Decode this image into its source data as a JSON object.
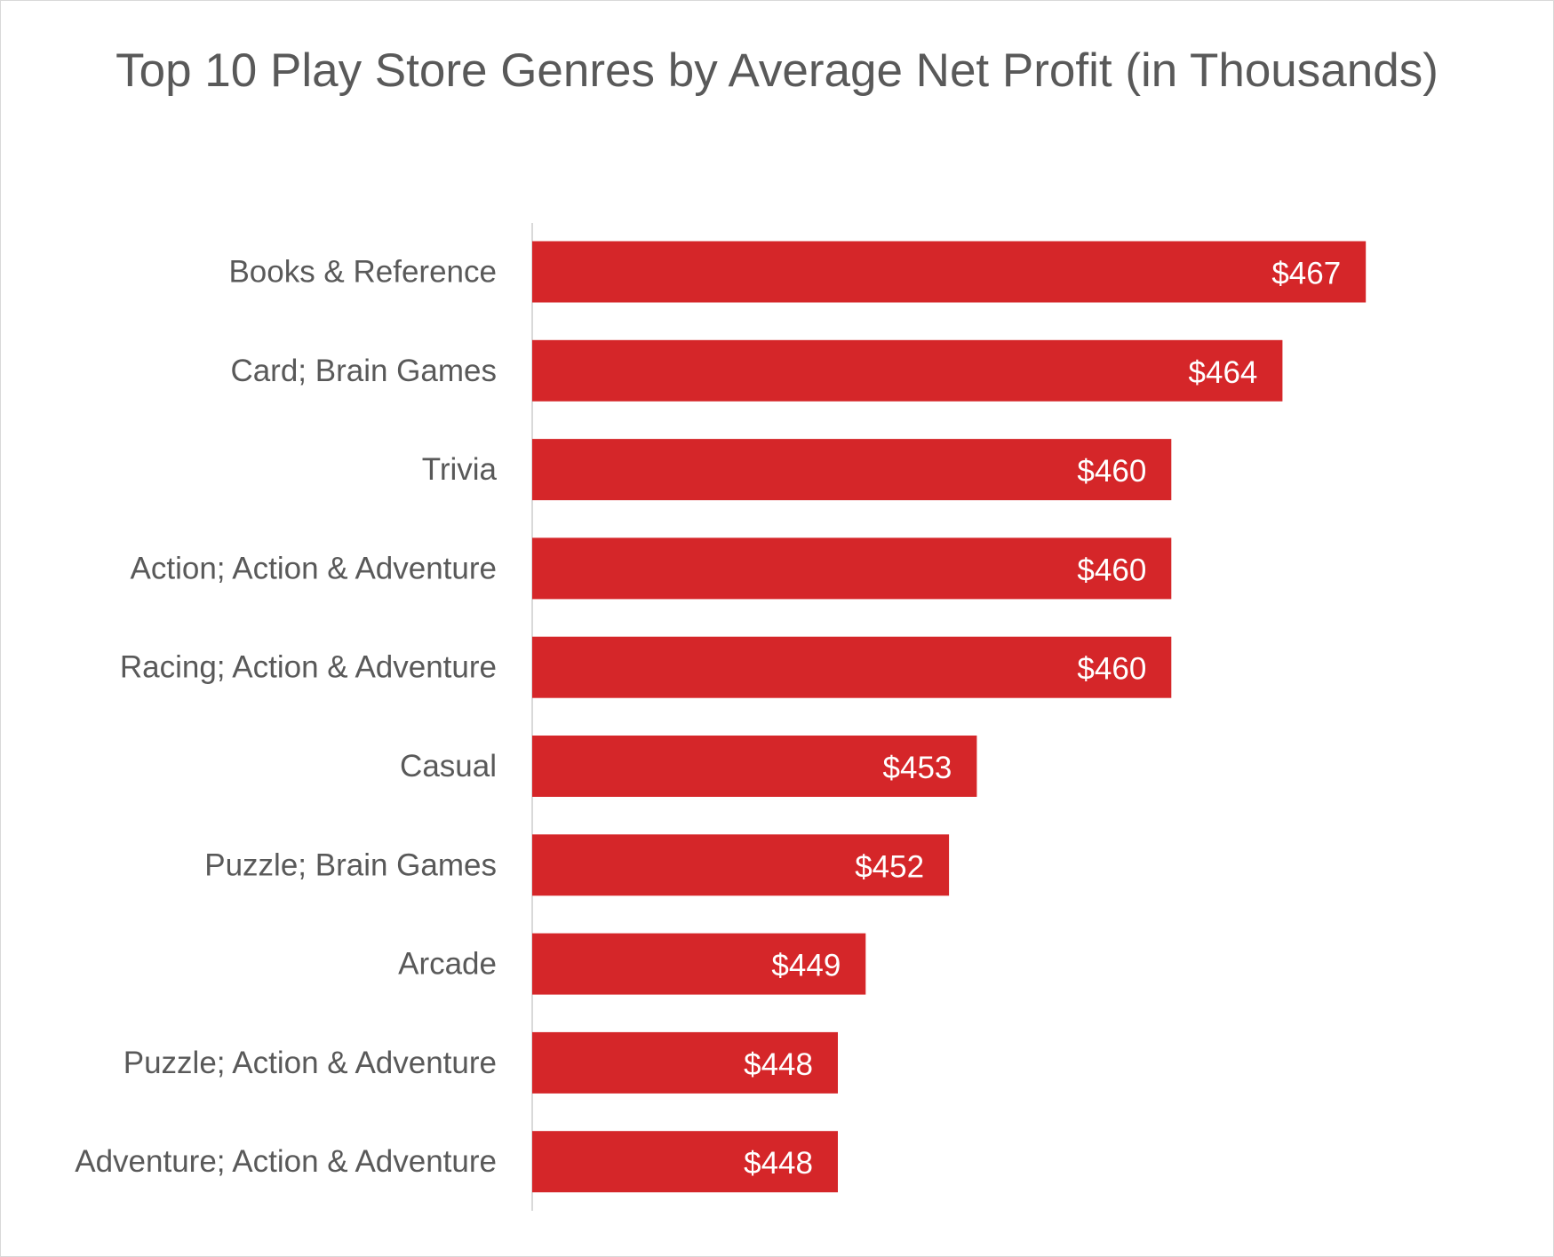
{
  "chart_data": {
    "type": "bar",
    "orientation": "horizontal",
    "title": "Top 10 Play Store Genres by Average Net Profit (in Thousands)",
    "xlabel": "",
    "ylabel": "",
    "categories": [
      "Books & Reference",
      "Card; Brain Games",
      "Trivia",
      "Action; Action & Adventure",
      "Racing; Action & Adventure",
      "Casual",
      "Puzzle; Brain Games",
      "Arcade",
      "Puzzle; Action & Adventure",
      "Adventure; Action & Adventure"
    ],
    "values": [
      467,
      464,
      460,
      460,
      460,
      453,
      452,
      449,
      448,
      448
    ],
    "data_labels": [
      "$467",
      "$464",
      "$460",
      "$460",
      "$460",
      "$453",
      "$452",
      "$449",
      "$448",
      "$448"
    ],
    "xlim": [
      437,
      470
    ],
    "bar_color": "#d52629",
    "grid": false,
    "legend": "none"
  }
}
